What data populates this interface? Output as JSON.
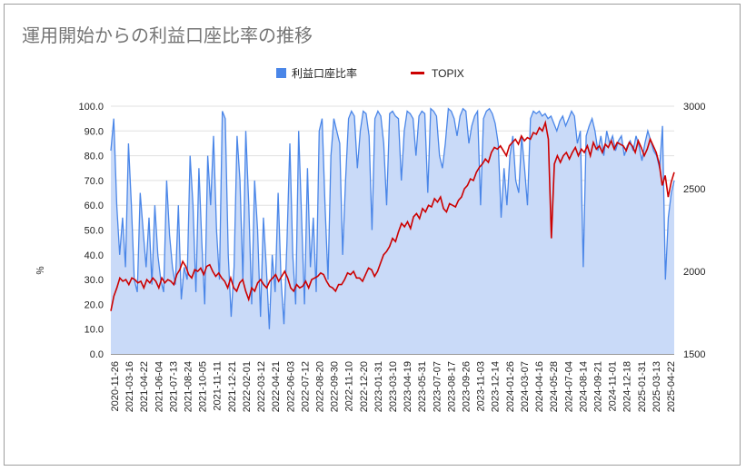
{
  "chart_data": {
    "type": "area+line",
    "title": "運用開始からの利益口座比率の推移",
    "left_axis_label": "％",
    "left_ylim": [
      0,
      100
    ],
    "left_ticks": [
      "0.0",
      "10.0",
      "20.0",
      "30.0",
      "40.0",
      "50.0",
      "60.0",
      "70.0",
      "80.0",
      "90.0",
      "100.0"
    ],
    "right_ylim": [
      1500,
      3000
    ],
    "right_ticks": [
      "1500",
      "2000",
      "2500",
      "3000"
    ],
    "x_ticks": [
      "2020-11-26",
      "2021-03-16",
      "2021-04-22",
      "2021-06-04",
      "2021-07-13",
      "2021-08-24",
      "2021-10-05",
      "2021-11-11",
      "2021-12-21",
      "2022-02-01",
      "2022-03-12",
      "2022-04-21",
      "2022-06-03",
      "2022-07-12",
      "2022-08-20",
      "2022-09-30",
      "2022-11-10",
      "2022-12-20",
      "2023-01-31",
      "2023-03-10",
      "2023-04-19",
      "2023-05-31",
      "2023-07-07",
      "2023-08-17",
      "2023-09-26",
      "2023-11-03",
      "2023-12-14",
      "2024-01-26",
      "2024-03-07",
      "2024-04-16",
      "2024-05-28",
      "2024-07-04",
      "2024-08-14",
      "2024-09-21",
      "2024-11-01",
      "2024-12-18",
      "2025-01-31",
      "2025-03-13",
      "2025-04-22"
    ],
    "legend_position": "top",
    "grid": true,
    "series": [
      {
        "name": "利益口座比率",
        "axis": "left",
        "color": "#4a86e8",
        "values": [
          82,
          95,
          60,
          40,
          55,
          35,
          85,
          60,
          30,
          25,
          65,
          50,
          35,
          55,
          28,
          60,
          40,
          30,
          25,
          70,
          48,
          35,
          28,
          60,
          22,
          35,
          30,
          80,
          60,
          25,
          75,
          45,
          20,
          80,
          60,
          88,
          50,
          30,
          98,
          95,
          40,
          15,
          35,
          88,
          70,
          30,
          90,
          60,
          20,
          70,
          50,
          15,
          55,
          35,
          10,
          40,
          25,
          65,
          30,
          12,
          45,
          85,
          40,
          20,
          90,
          55,
          20,
          75,
          35,
          55,
          25,
          90,
          95,
          60,
          30,
          80,
          95,
          90,
          85,
          40,
          70,
          95,
          98,
          96,
          75,
          90,
          98,
          97,
          88,
          50,
          95,
          98,
          96,
          85,
          60,
          97,
          98,
          96,
          95,
          70,
          90,
          98,
          97,
          95,
          80,
          96,
          98,
          97,
          65,
          99,
          98,
          96,
          80,
          75,
          85,
          99,
          98,
          95,
          88,
          96,
          99,
          98,
          85,
          92,
          96,
          98,
          60,
          95,
          98,
          99,
          97,
          93,
          85,
          55,
          75,
          60,
          80,
          88,
          70,
          65,
          88,
          75,
          60,
          95,
          98,
          97,
          98,
          96,
          97,
          95,
          96,
          93,
          90,
          94,
          96,
          92,
          95,
          98,
          96,
          85,
          90,
          35,
          88,
          92,
          95,
          90,
          82,
          88,
          80,
          90,
          85,
          88,
          82,
          86,
          88,
          80,
          84,
          86,
          82,
          88,
          84,
          78,
          85,
          90,
          86,
          82,
          80,
          75,
          92,
          30,
          55,
          65,
          70
        ],
        "fill": "#c9daf8"
      },
      {
        "name": "TOPIX",
        "axis": "right",
        "color": "#cc0000",
        "values": [
          1760,
          1850,
          1900,
          1960,
          1940,
          1950,
          1920,
          1960,
          1950,
          1930,
          1940,
          1900,
          1950,
          1930,
          1960,
          1940,
          1900,
          1960,
          1930,
          1950,
          1940,
          1920,
          1980,
          2010,
          2060,
          2030,
          1980,
          1960,
          2010,
          2000,
          2020,
          1980,
          2030,
          2040,
          2000,
          1970,
          1990,
          1960,
          1940,
          1900,
          1960,
          1900,
          1880,
          1930,
          1950,
          1880,
          1830,
          1900,
          1880,
          1930,
          1950,
          1920,
          1900,
          1940,
          1960,
          1980,
          1940,
          1970,
          2000,
          1960,
          1900,
          1880,
          1920,
          1900,
          1910,
          1940,
          1900,
          1950,
          1960,
          1970,
          1990,
          1980,
          1940,
          1910,
          1900,
          1880,
          1920,
          1920,
          1950,
          1990,
          1980,
          2000,
          1960,
          1960,
          1940,
          1980,
          2020,
          2010,
          1970,
          2000,
          2050,
          2100,
          2120,
          2150,
          2200,
          2180,
          2240,
          2290,
          2270,
          2300,
          2260,
          2330,
          2350,
          2320,
          2380,
          2360,
          2400,
          2390,
          2440,
          2420,
          2450,
          2380,
          2360,
          2410,
          2400,
          2390,
          2430,
          2450,
          2500,
          2520,
          2560,
          2550,
          2600,
          2630,
          2650,
          2680,
          2660,
          2720,
          2750,
          2740,
          2760,
          2730,
          2700,
          2760,
          2780,
          2800,
          2770,
          2820,
          2790,
          2810,
          2800,
          2840,
          2830,
          2870,
          2850,
          2900,
          2800,
          2200,
          2650,
          2700,
          2660,
          2700,
          2720,
          2680,
          2720,
          2750,
          2700,
          2740,
          2720,
          2760,
          2700,
          2780,
          2740,
          2760,
          2720,
          2770,
          2750,
          2790,
          2740,
          2780,
          2770,
          2760,
          2730,
          2780,
          2760,
          2720,
          2790,
          2750,
          2700,
          2740,
          2800,
          2760,
          2720,
          2650,
          2520,
          2580,
          2450,
          2540,
          2600
        ],
        "fill": ""
      }
    ]
  }
}
